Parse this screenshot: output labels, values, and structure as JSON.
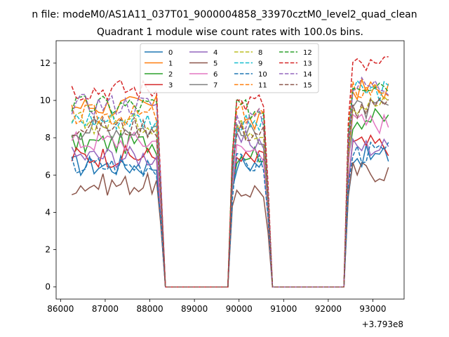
{
  "chart_data": {
    "type": "line",
    "suptitle": "n file: modeM0/AS1A11_037T01_9000004858_33970cztM0_level2_quad_clean",
    "title": "Quadrant 1 module wise count rates with 100.0s bins.",
    "xlabel": "",
    "ylabel": "",
    "x_offset_label": "+3.793e8",
    "xlim": [
      85900,
      93700
    ],
    "ylim": [
      -0.65,
      13.2
    ],
    "xticks": [
      86000,
      87000,
      88000,
      89000,
      90000,
      91000,
      92000,
      93000
    ],
    "yticks": [
      0,
      2,
      4,
      6,
      8,
      10,
      12
    ],
    "grid": false,
    "legend": {
      "placement": "upper-center",
      "columns": 4
    },
    "x_units_note": "tick values are offsets from 3.793e8",
    "segments": [
      {
        "x0": 86250,
        "x1": 88250
      },
      {
        "x0": 89850,
        "x1": 90650
      },
      {
        "x0": 92450,
        "x1": 93350
      }
    ],
    "gap_value": 0,
    "series": [
      {
        "name": "0",
        "color": "#1f77b4",
        "dash": "solid",
        "levels": [
          6.5,
          6.6,
          7.0
        ]
      },
      {
        "name": "1",
        "color": "#ff7f0e",
        "dash": "solid",
        "levels": [
          9.7,
          8.8,
          10.6
        ]
      },
      {
        "name": "2",
        "color": "#2ca02c",
        "dash": "solid",
        "levels": [
          7.7,
          7.2,
          9.0
        ]
      },
      {
        "name": "3",
        "color": "#d62728",
        "dash": "solid",
        "levels": [
          7.0,
          6.8,
          7.6
        ]
      },
      {
        "name": "4",
        "color": "#9467bd",
        "dash": "solid",
        "levels": [
          7.0,
          7.8,
          7.5
        ]
      },
      {
        "name": "5",
        "color": "#8c564b",
        "dash": "solid",
        "levels": [
          5.5,
          5.2,
          6.2
        ]
      },
      {
        "name": "6",
        "color": "#e377c2",
        "dash": "solid",
        "levels": [
          7.8,
          7.3,
          8.8
        ]
      },
      {
        "name": "7",
        "color": "#7f7f7f",
        "dash": "solid",
        "levels": [
          8.5,
          8.2,
          9.5
        ]
      },
      {
        "name": "8",
        "color": "#bcbd22",
        "dash": "dashed",
        "levels": [
          8.8,
          8.5,
          9.8
        ]
      },
      {
        "name": "9",
        "color": "#17becf",
        "dash": "dashed",
        "levels": [
          9.0,
          8.7,
          10.5
        ]
      },
      {
        "name": "10",
        "color": "#1f77b4",
        "dash": "dashed",
        "levels": [
          6.5,
          6.6,
          7.2
        ]
      },
      {
        "name": "11",
        "color": "#ff7f0e",
        "dash": "dashed",
        "levels": [
          9.2,
          9.3,
          10.6
        ]
      },
      {
        "name": "12",
        "color": "#2ca02c",
        "dash": "dashed",
        "levels": [
          9.7,
          9.5,
          11.0
        ]
      },
      {
        "name": "13",
        "color": "#d62728",
        "dash": "dashed",
        "levels": [
          10.6,
          9.9,
          11.8
        ]
      },
      {
        "name": "14",
        "color": "#9467bd",
        "dash": "dashed",
        "levels": [
          9.8,
          9.0,
          10.8
        ]
      },
      {
        "name": "15",
        "color": "#8c564b",
        "dash": "dashed",
        "levels": [
          8.6,
          8.3,
          9.6
        ]
      }
    ]
  }
}
